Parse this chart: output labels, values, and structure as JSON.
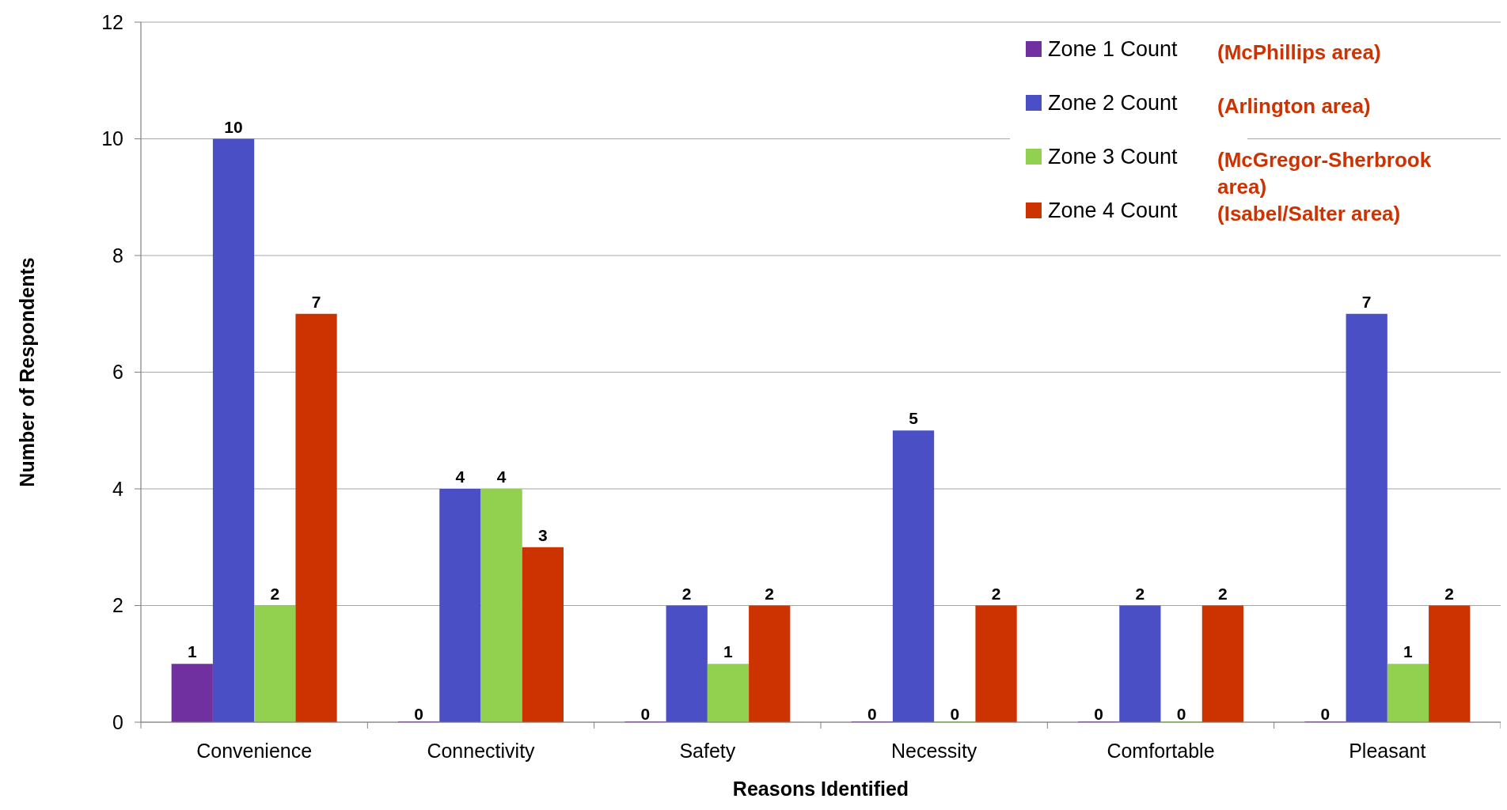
{
  "chart_data": {
    "type": "bar",
    "xlabel": "Reasons Identified",
    "ylabel": "Number of Respondents",
    "categories": [
      "Convenience",
      "Connectivity",
      "Safety",
      "Necessity",
      "Comfortable",
      "Pleasant"
    ],
    "series": [
      {
        "name": "Zone 1 Count",
        "color": "#7030a0",
        "values": [
          1,
          0,
          0,
          0,
          0,
          0
        ]
      },
      {
        "name": "Zone 2 Count",
        "color": "#4b4fc6",
        "values": [
          10,
          4,
          2,
          5,
          2,
          7
        ]
      },
      {
        "name": "Zone 3 Count",
        "color": "#92d050",
        "values": [
          2,
          4,
          1,
          0,
          0,
          1
        ]
      },
      {
        "name": "Zone 4 Count",
        "color": "#cc3300",
        "values": [
          7,
          3,
          2,
          2,
          2,
          2
        ]
      }
    ],
    "ylim": [
      0,
      12
    ],
    "yticks": [
      0,
      2,
      4,
      6,
      8,
      10,
      12
    ],
    "grid": "y",
    "legend": "top right",
    "data_labels": true,
    "annotations": [
      "(McPhillips area)",
      "(Arlington area)",
      "(McGregor-Sherbrook area)",
      "(Isabel/Salter area)"
    ]
  }
}
